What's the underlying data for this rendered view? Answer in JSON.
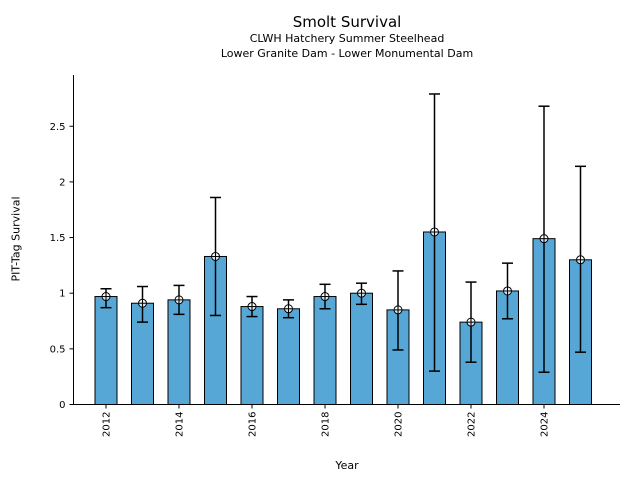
{
  "figure": {
    "title": "Smolt Survival",
    "subtitle_line1": "CLWH Hatchery Summer Steelhead",
    "subtitle_line2": "Lower Granite Dam - Lower Monumental Dam"
  },
  "chart_data": {
    "type": "bar",
    "title": "Smolt Survival",
    "subtitle": [
      "CLWH Hatchery Summer Steelhead",
      "Lower Granite Dam - Lower Monumental Dam"
    ],
    "xlabel": "Year",
    "ylabel": "PIT-Tag Survival",
    "categories": [
      "2012",
      "2013",
      "2014",
      "2015",
      "2016",
      "2017",
      "2018",
      "2019",
      "2020",
      "2021",
      "2022",
      "2023",
      "2024",
      "2025"
    ],
    "values": [
      0.97,
      0.91,
      0.94,
      1.33,
      0.88,
      0.86,
      0.97,
      1.0,
      0.85,
      1.55,
      0.74,
      1.02,
      1.49,
      1.3
    ],
    "error_low": [
      0.87,
      0.74,
      0.81,
      0.8,
      0.79,
      0.78,
      0.86,
      0.9,
      0.49,
      0.3,
      0.38,
      0.77,
      0.29,
      0.47
    ],
    "error_high": [
      1.04,
      1.06,
      1.07,
      1.86,
      0.97,
      0.94,
      1.08,
      1.09,
      1.2,
      2.79,
      1.1,
      1.27,
      2.68,
      2.14
    ],
    "ytick_labels": [
      "0",
      "0.5",
      "1",
      "1.5",
      "2",
      "2.5"
    ],
    "ytick_values": [
      0,
      0.5,
      1,
      1.5,
      2,
      2.5
    ],
    "xtick_labels": [
      "2012",
      "2014",
      "2016",
      "2018",
      "2020",
      "2022",
      "2024"
    ],
    "ylim": [
      0,
      2.96
    ],
    "grid": false,
    "legend": null,
    "marker": "circle-plus",
    "bar_fill_color": "#57A7D6",
    "bar_edge_color": "#000000",
    "error_bar_color": "#000000",
    "axis_color": "#000000"
  }
}
